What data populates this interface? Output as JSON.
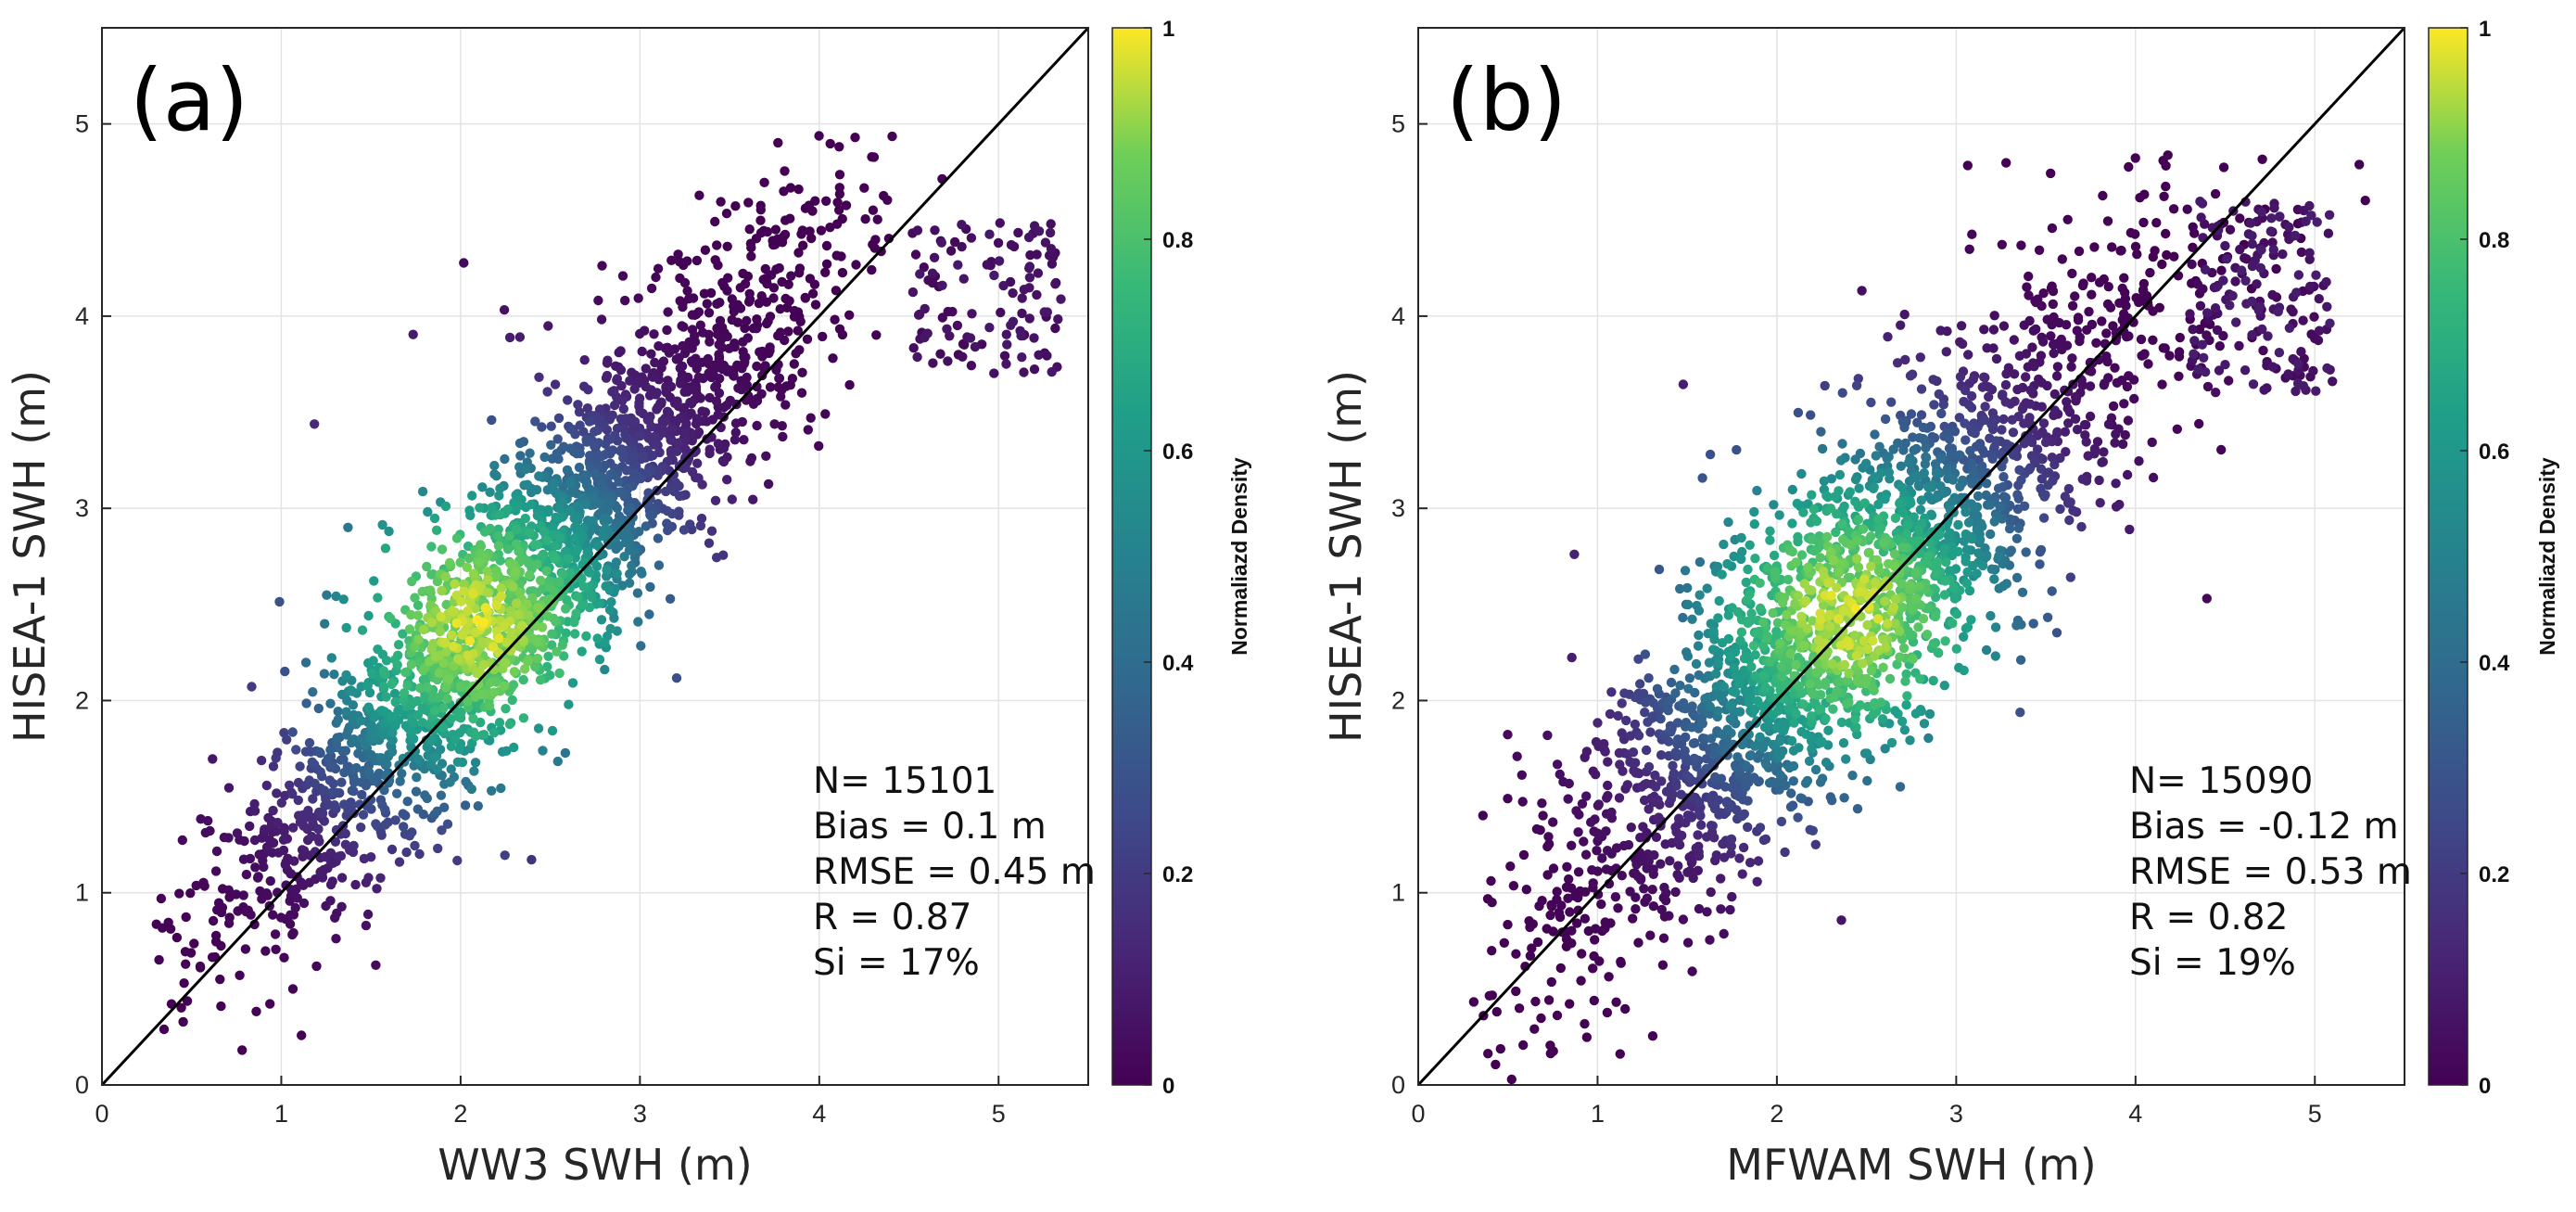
{
  "chart_data": [
    {
      "type": "scatter",
      "panel_label": "(a)",
      "xlabel": "WW3 SWH (m)",
      "ylabel": "HISEA-1 SWH (m)",
      "xlim": [
        0,
        5.5
      ],
      "ylim": [
        0,
        5.5
      ],
      "xticks": [
        "0",
        "1",
        "2",
        "3",
        "4",
        "5"
      ],
      "yticks": [
        "0",
        "1",
        "2",
        "3",
        "4",
        "5"
      ],
      "grid": true,
      "reference_line": "1:1",
      "density_peak": [
        2.1,
        2.4
      ],
      "stats": [
        "N= 15101",
        "Bias = 0.1 m",
        "RMSE = 0.45 m",
        "R = 0.87",
        "Si = 17%"
      ],
      "colorbar": {
        "label": "Normaliazd Density",
        "ticks": [
          "0",
          "0.2",
          "0.4",
          "0.6",
          "0.8",
          "1"
        ],
        "colormap": [
          "#440154",
          "#3b528b",
          "#21918c",
          "#5ec962",
          "#fde725"
        ]
      }
    },
    {
      "type": "scatter",
      "panel_label": "(b)",
      "xlabel": "MFWAM SWH (m)",
      "ylabel": "HISEA-1 SWH (m)",
      "xlim": [
        0,
        5.5
      ],
      "ylim": [
        0,
        5.5
      ],
      "xticks": [
        "0",
        "1",
        "2",
        "3",
        "4",
        "5"
      ],
      "yticks": [
        "0",
        "1",
        "2",
        "3",
        "4",
        "5"
      ],
      "grid": true,
      "reference_line": "1:1",
      "density_peak": [
        2.4,
        2.45
      ],
      "stats": [
        "N= 15090",
        "Bias = -0.12 m",
        "RMSE = 0.53 m",
        "R = 0.82",
        "Si = 19%"
      ],
      "colorbar": {
        "label": "Normaliazd Density",
        "ticks": [
          "0",
          "0.2",
          "0.4",
          "0.6",
          "0.8",
          "1"
        ],
        "colormap": [
          "#440154",
          "#3b528b",
          "#21918c",
          "#5ec962",
          "#fde725"
        ]
      }
    }
  ]
}
